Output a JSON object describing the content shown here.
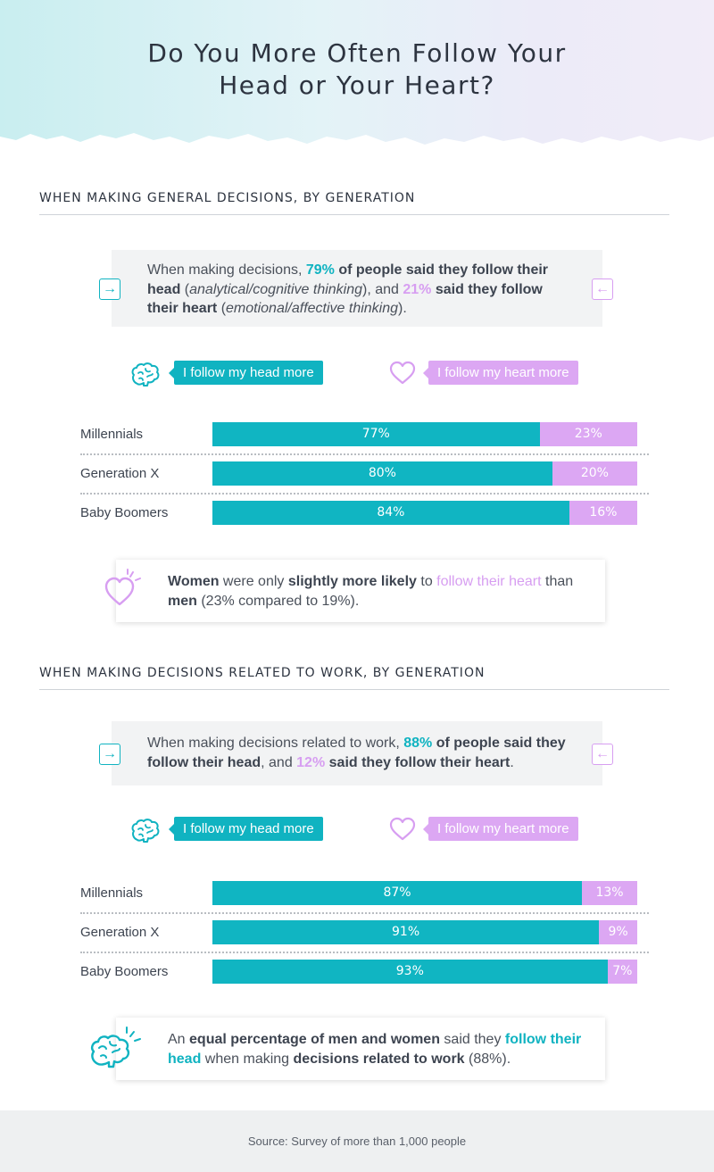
{
  "title_line1": "Do You More Often Follow Your",
  "title_line2": "Head or Your Heart?",
  "colors": {
    "head": "#10b5c2",
    "heart": "#dca7f3",
    "text": "#3d4450"
  },
  "legend": {
    "head_label": "I follow my head more",
    "heart_label": "I follow my heart more",
    "head_icon": "brain-icon",
    "heart_icon": "heart-icon"
  },
  "section1": {
    "heading": "WHEN MAKING GENERAL DECISIONS, BY GENERATION",
    "summary": {
      "p1": "When making decisions, ",
      "head_pct": "79%",
      "p2": " of people said they follow their ",
      "head_word": "head",
      "p3": " (",
      "head_note": "analytical/cognitive thinking",
      "p4": "), and ",
      "heart_pct": "21%",
      "p5": " said they follow ",
      "heart_word": "their heart",
      "p6": " (",
      "heart_note": "emotional/affective thinking",
      "p7": ")."
    },
    "callout": {
      "w1": "Women",
      "t1": " were only ",
      "w2": "slightly more likely",
      "t2": " to ",
      "w3": "follow their heart",
      "t3": " than ",
      "w4": "men",
      "t4": " (23% compared to 19%)."
    }
  },
  "section2": {
    "heading": "WHEN MAKING DECISIONS RELATED TO WORK, BY GENERATION",
    "summary": {
      "p1": "When making decisions related to work, ",
      "head_pct": "88%",
      "p2": " of people said ",
      "head_phrase": "they follow their head",
      "p3": ", and ",
      "heart_pct": "12%",
      "p4": " ",
      "heart_phrase": "said they follow their heart",
      "p5": "."
    },
    "callout": {
      "t0": "An ",
      "w1": "equal percentage of men and women",
      "t1": " said they ",
      "w2": "follow their head",
      "t2": " when making ",
      "w3": "decisions related to work",
      "t3": " (88%)."
    }
  },
  "chart_data": [
    {
      "type": "bar",
      "stacked": true,
      "orientation": "horizontal",
      "categories": [
        "Millennials",
        "Generation X",
        "Baby Boomers"
      ],
      "series": [
        {
          "name": "I follow my head more",
          "values": [
            77,
            80,
            84
          ],
          "labels": [
            "77%",
            "80%",
            "84%"
          ]
        },
        {
          "name": "I follow my heart more",
          "values": [
            23,
            20,
            16
          ],
          "labels": [
            "23%",
            "20%",
            "16%"
          ]
        }
      ],
      "xlim": [
        0,
        100
      ],
      "legend": "top"
    },
    {
      "type": "bar",
      "stacked": true,
      "orientation": "horizontal",
      "categories": [
        "Millennials",
        "Generation X",
        "Baby Boomers"
      ],
      "series": [
        {
          "name": "I follow my head more",
          "values": [
            87,
            91,
            93
          ],
          "labels": [
            "87%",
            "91%",
            "93%"
          ]
        },
        {
          "name": "I follow my heart more",
          "values": [
            13,
            9,
            7
          ],
          "labels": [
            "13%",
            "9%",
            "7%"
          ]
        }
      ],
      "xlim": [
        0,
        100
      ],
      "legend": "top"
    }
  ],
  "footer": {
    "source": "Source: Survey of more than 1,000 people"
  }
}
